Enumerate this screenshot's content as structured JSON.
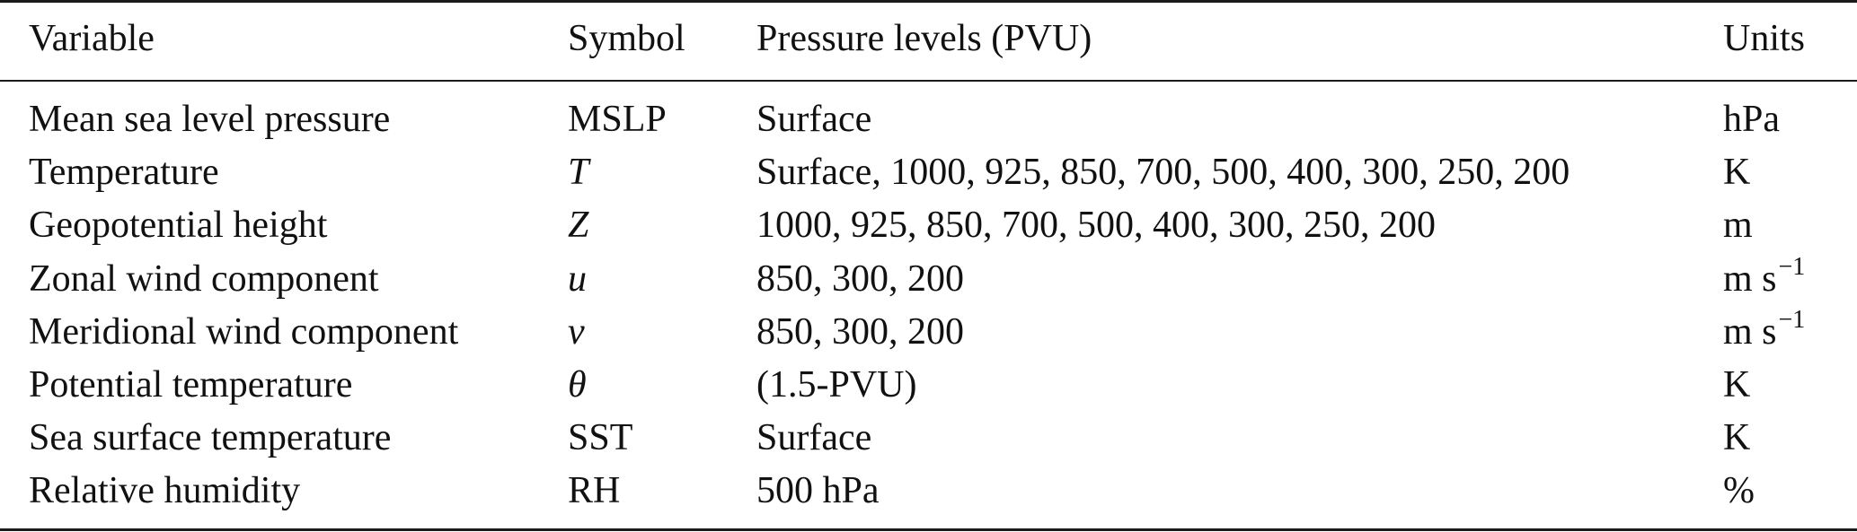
{
  "header": {
    "variable": "Variable",
    "symbol": "Symbol",
    "levels": "Pressure levels (PVU)",
    "units": "Units"
  },
  "rows": [
    {
      "variable": "Mean sea level pressure",
      "symbol": "MSLP",
      "symbol_italic": false,
      "levels": "Surface",
      "units": "hPa",
      "units_sup": ""
    },
    {
      "variable": "Temperature",
      "symbol": "T",
      "symbol_italic": true,
      "levels": "Surface, 1000, 925, 850, 700, 500, 400, 300, 250, 200",
      "units": "K",
      "units_sup": ""
    },
    {
      "variable": "Geopotential height",
      "symbol": "Z",
      "symbol_italic": true,
      "levels": "1000, 925, 850, 700, 500, 400, 300, 250, 200",
      "units": "m",
      "units_sup": ""
    },
    {
      "variable": "Zonal wind component",
      "symbol": "u",
      "symbol_italic": true,
      "levels": "850, 300, 200",
      "units": "m s",
      "units_sup": "−1"
    },
    {
      "variable": "Meridional wind component",
      "symbol": "v",
      "symbol_italic": true,
      "levels": "850, 300, 200",
      "units": "m s",
      "units_sup": "−1"
    },
    {
      "variable": "Potential temperature",
      "symbol": "θ",
      "symbol_italic": true,
      "levels": "(1.5-PVU)",
      "units": "K",
      "units_sup": ""
    },
    {
      "variable": "Sea surface temperature",
      "symbol": "SST",
      "symbol_italic": false,
      "levels": "Surface",
      "units": "K",
      "units_sup": ""
    },
    {
      "variable": "Relative humidity",
      "symbol": "RH",
      "symbol_italic": false,
      "levels": "500 hPa",
      "units": "%",
      "units_sup": ""
    }
  ]
}
